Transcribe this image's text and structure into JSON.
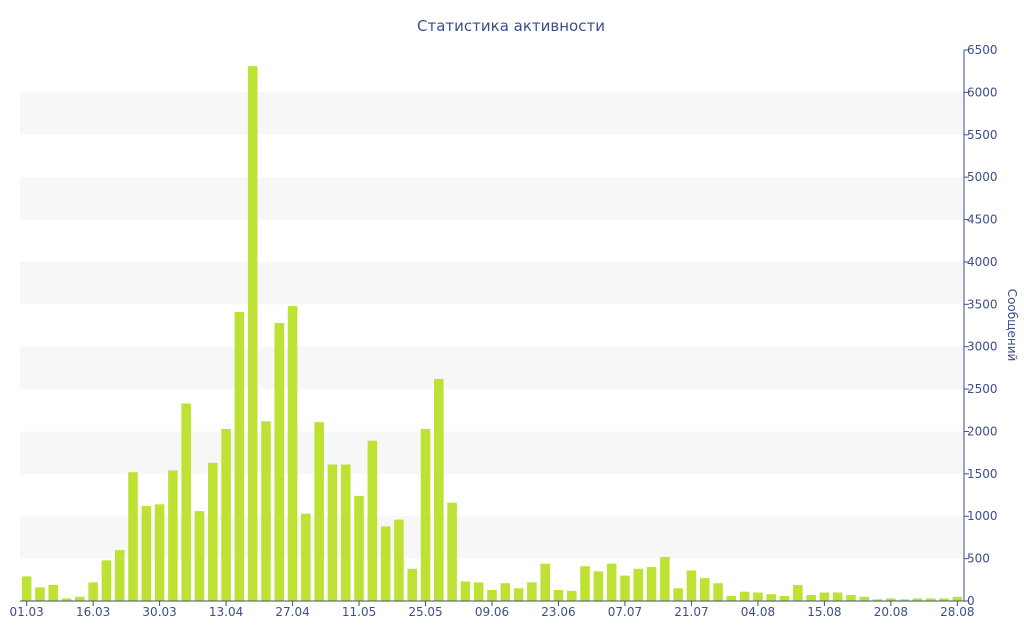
{
  "chart_data": {
    "type": "bar",
    "title": "Статистика активности",
    "xlabel": "",
    "ylabel": "Сообщений",
    "ylim": [
      0,
      6500
    ],
    "y_ticks": [
      0,
      500,
      1000,
      1500,
      2000,
      2500,
      3000,
      3500,
      4000,
      4500,
      5000,
      5500,
      6000,
      6500
    ],
    "y_axis_position": "right",
    "grid": "alternating horizontal bands",
    "colors": {
      "bar": "#bde234",
      "axis": "#3e4e8c",
      "band": "#f7f7f7"
    },
    "x_tick_labels": [
      "01.03",
      "16.03",
      "30.03",
      "13.04",
      "27.04",
      "11.05",
      "25.05",
      "09.06",
      "23.06",
      "07.07",
      "21.07",
      "04.08",
      "15.08",
      "20.08",
      "28.08"
    ],
    "x_tick_bar_index": [
      0,
      5,
      10,
      15,
      20,
      25,
      30,
      35,
      40,
      45,
      50,
      55,
      60,
      65,
      70
    ],
    "values": [
      290,
      160,
      190,
      30,
      50,
      220,
      480,
      600,
      1520,
      1120,
      1140,
      1540,
      2330,
      1060,
      1630,
      2030,
      3410,
      6310,
      2120,
      3280,
      3480,
      1030,
      2110,
      1610,
      1610,
      1240,
      1890,
      880,
      960,
      380,
      2030,
      2620,
      1160,
      230,
      220,
      130,
      210,
      150,
      220,
      440,
      130,
      120,
      410,
      350,
      440,
      300,
      380,
      400,
      520,
      150,
      360,
      270,
      210,
      60,
      110,
      100,
      80,
      60,
      190,
      70,
      100,
      100,
      70,
      50,
      20,
      30,
      20,
      30,
      30,
      30,
      50
    ]
  }
}
